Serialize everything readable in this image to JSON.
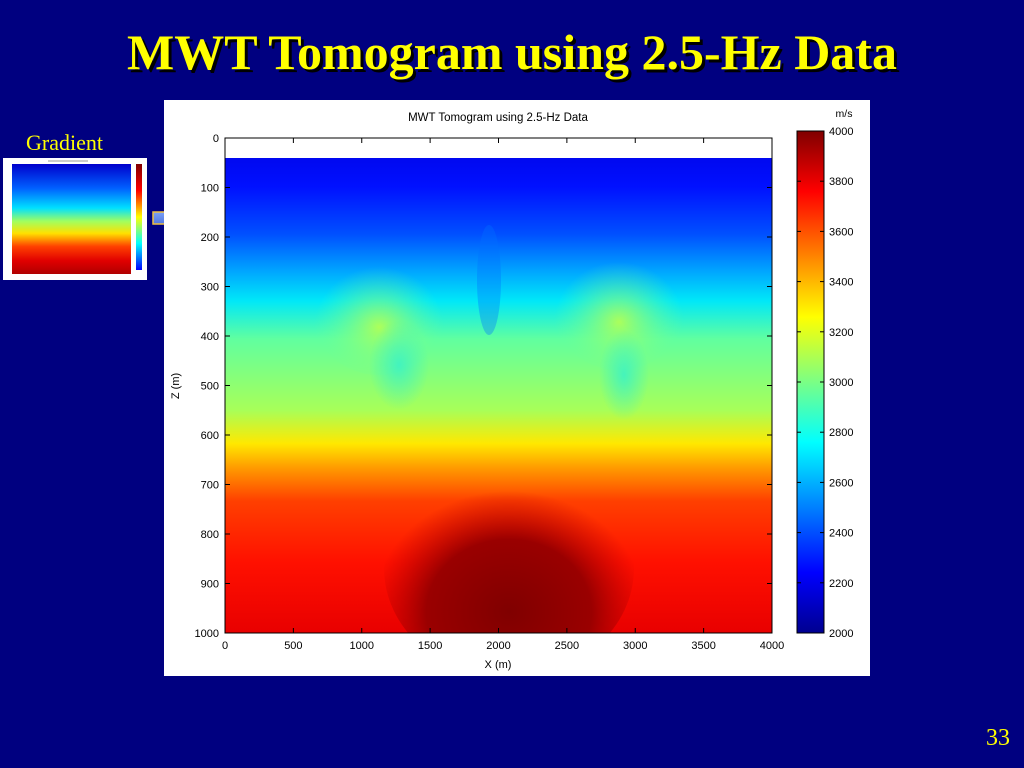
{
  "slide": {
    "title": "MWT Tomogram using 2.5-Hz Data",
    "inset_label": "Gradient",
    "page_number": "33"
  },
  "chart_data": {
    "type": "heatmap",
    "title": "MWT Tomogram using 2.5-Hz Data",
    "xlabel": "X (m)",
    "ylabel": "Z (m)",
    "xlim": [
      0,
      4000
    ],
    "ylim": [
      0,
      1000
    ],
    "y_reversed": true,
    "x_ticks": [
      "0",
      "500",
      "1000",
      "1500",
      "2000",
      "2500",
      "3000",
      "3500",
      "4000"
    ],
    "y_ticks": [
      "0",
      "100",
      "200",
      "300",
      "400",
      "500",
      "600",
      "700",
      "800",
      "900",
      "1000"
    ],
    "colorbar": {
      "unit": "m/s",
      "range": [
        2000,
        4000
      ],
      "ticks": [
        "4000",
        "3800",
        "3600",
        "3400",
        "3200",
        "3000",
        "2800",
        "2600",
        "2400",
        "2200",
        "2000"
      ],
      "colormap": "jet"
    },
    "velocity_depth_profile": {
      "z": [
        50,
        120,
        200,
        260,
        300,
        380,
        450,
        530,
        600,
        650,
        720,
        800,
        900,
        1000
      ],
      "v": [
        2200,
        2300,
        2500,
        2700,
        2850,
        3000,
        3050,
        3080,
        3200,
        3450,
        3700,
        3800,
        3800,
        3820
      ]
    }
  }
}
